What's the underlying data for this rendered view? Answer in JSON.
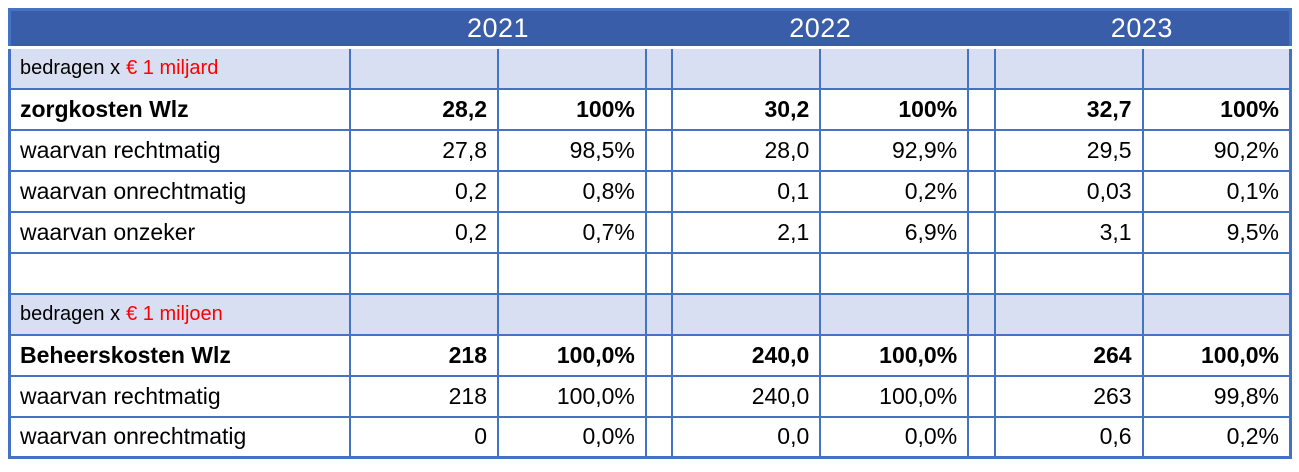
{
  "table": {
    "years": [
      "2021",
      "2022",
      "2023"
    ],
    "sections": [
      {
        "unit_prefix": "bedragen x",
        "unit_highlight": "€ 1 miljard",
        "rows": [
          {
            "label": "zorgkosten Wlz",
            "bold": true,
            "cells": [
              [
                "28,2",
                "100%"
              ],
              [
                "30,2",
                "100%"
              ],
              [
                "32,7",
                "100%"
              ]
            ]
          },
          {
            "label": "waarvan rechtmatig",
            "bold": false,
            "cells": [
              [
                "27,8",
                "98,5%"
              ],
              [
                "28,0",
                "92,9%"
              ],
              [
                "29,5",
                "90,2%"
              ]
            ]
          },
          {
            "label": "waarvan onrechtmatig",
            "bold": false,
            "cells": [
              [
                "0,2",
                "0,8%"
              ],
              [
                "0,1",
                "0,2%"
              ],
              [
                "0,03",
                "0,1%"
              ]
            ]
          },
          {
            "label": "waarvan onzeker",
            "bold": false,
            "cells": [
              [
                "0,2",
                "0,7%"
              ],
              [
                "2,1",
                "6,9%"
              ],
              [
                "3,1",
                "9,5%"
              ]
            ]
          }
        ]
      },
      {
        "unit_prefix": "bedragen x",
        "unit_highlight": "€ 1 miljoen",
        "rows": [
          {
            "label": "Beheerskosten Wlz",
            "bold": true,
            "cells": [
              [
                "218",
                "100,0%"
              ],
              [
                "240,0",
                "100,0%"
              ],
              [
                "264",
                "100,0%"
              ]
            ]
          },
          {
            "label": "waarvan rechtmatig",
            "bold": false,
            "cells": [
              [
                "218",
                "100,0%"
              ],
              [
                "240,0",
                "100,0%"
              ],
              [
                "263",
                "99,8%"
              ]
            ]
          },
          {
            "label": "waarvan onrechtmatig",
            "bold": false,
            "cells": [
              [
                "0",
                "0,0%"
              ],
              [
                "0,0",
                "0,0%"
              ],
              [
                "0,6",
                "0,2%"
              ]
            ]
          }
        ]
      }
    ],
    "colors": {
      "header_blue": "#3A5DA9",
      "band_blue": "#D9DFF2",
      "border_blue": "#4472C4",
      "highlight_red": "#FF0000",
      "header_text": "#FFFFFF",
      "body_text": "#000000"
    }
  }
}
